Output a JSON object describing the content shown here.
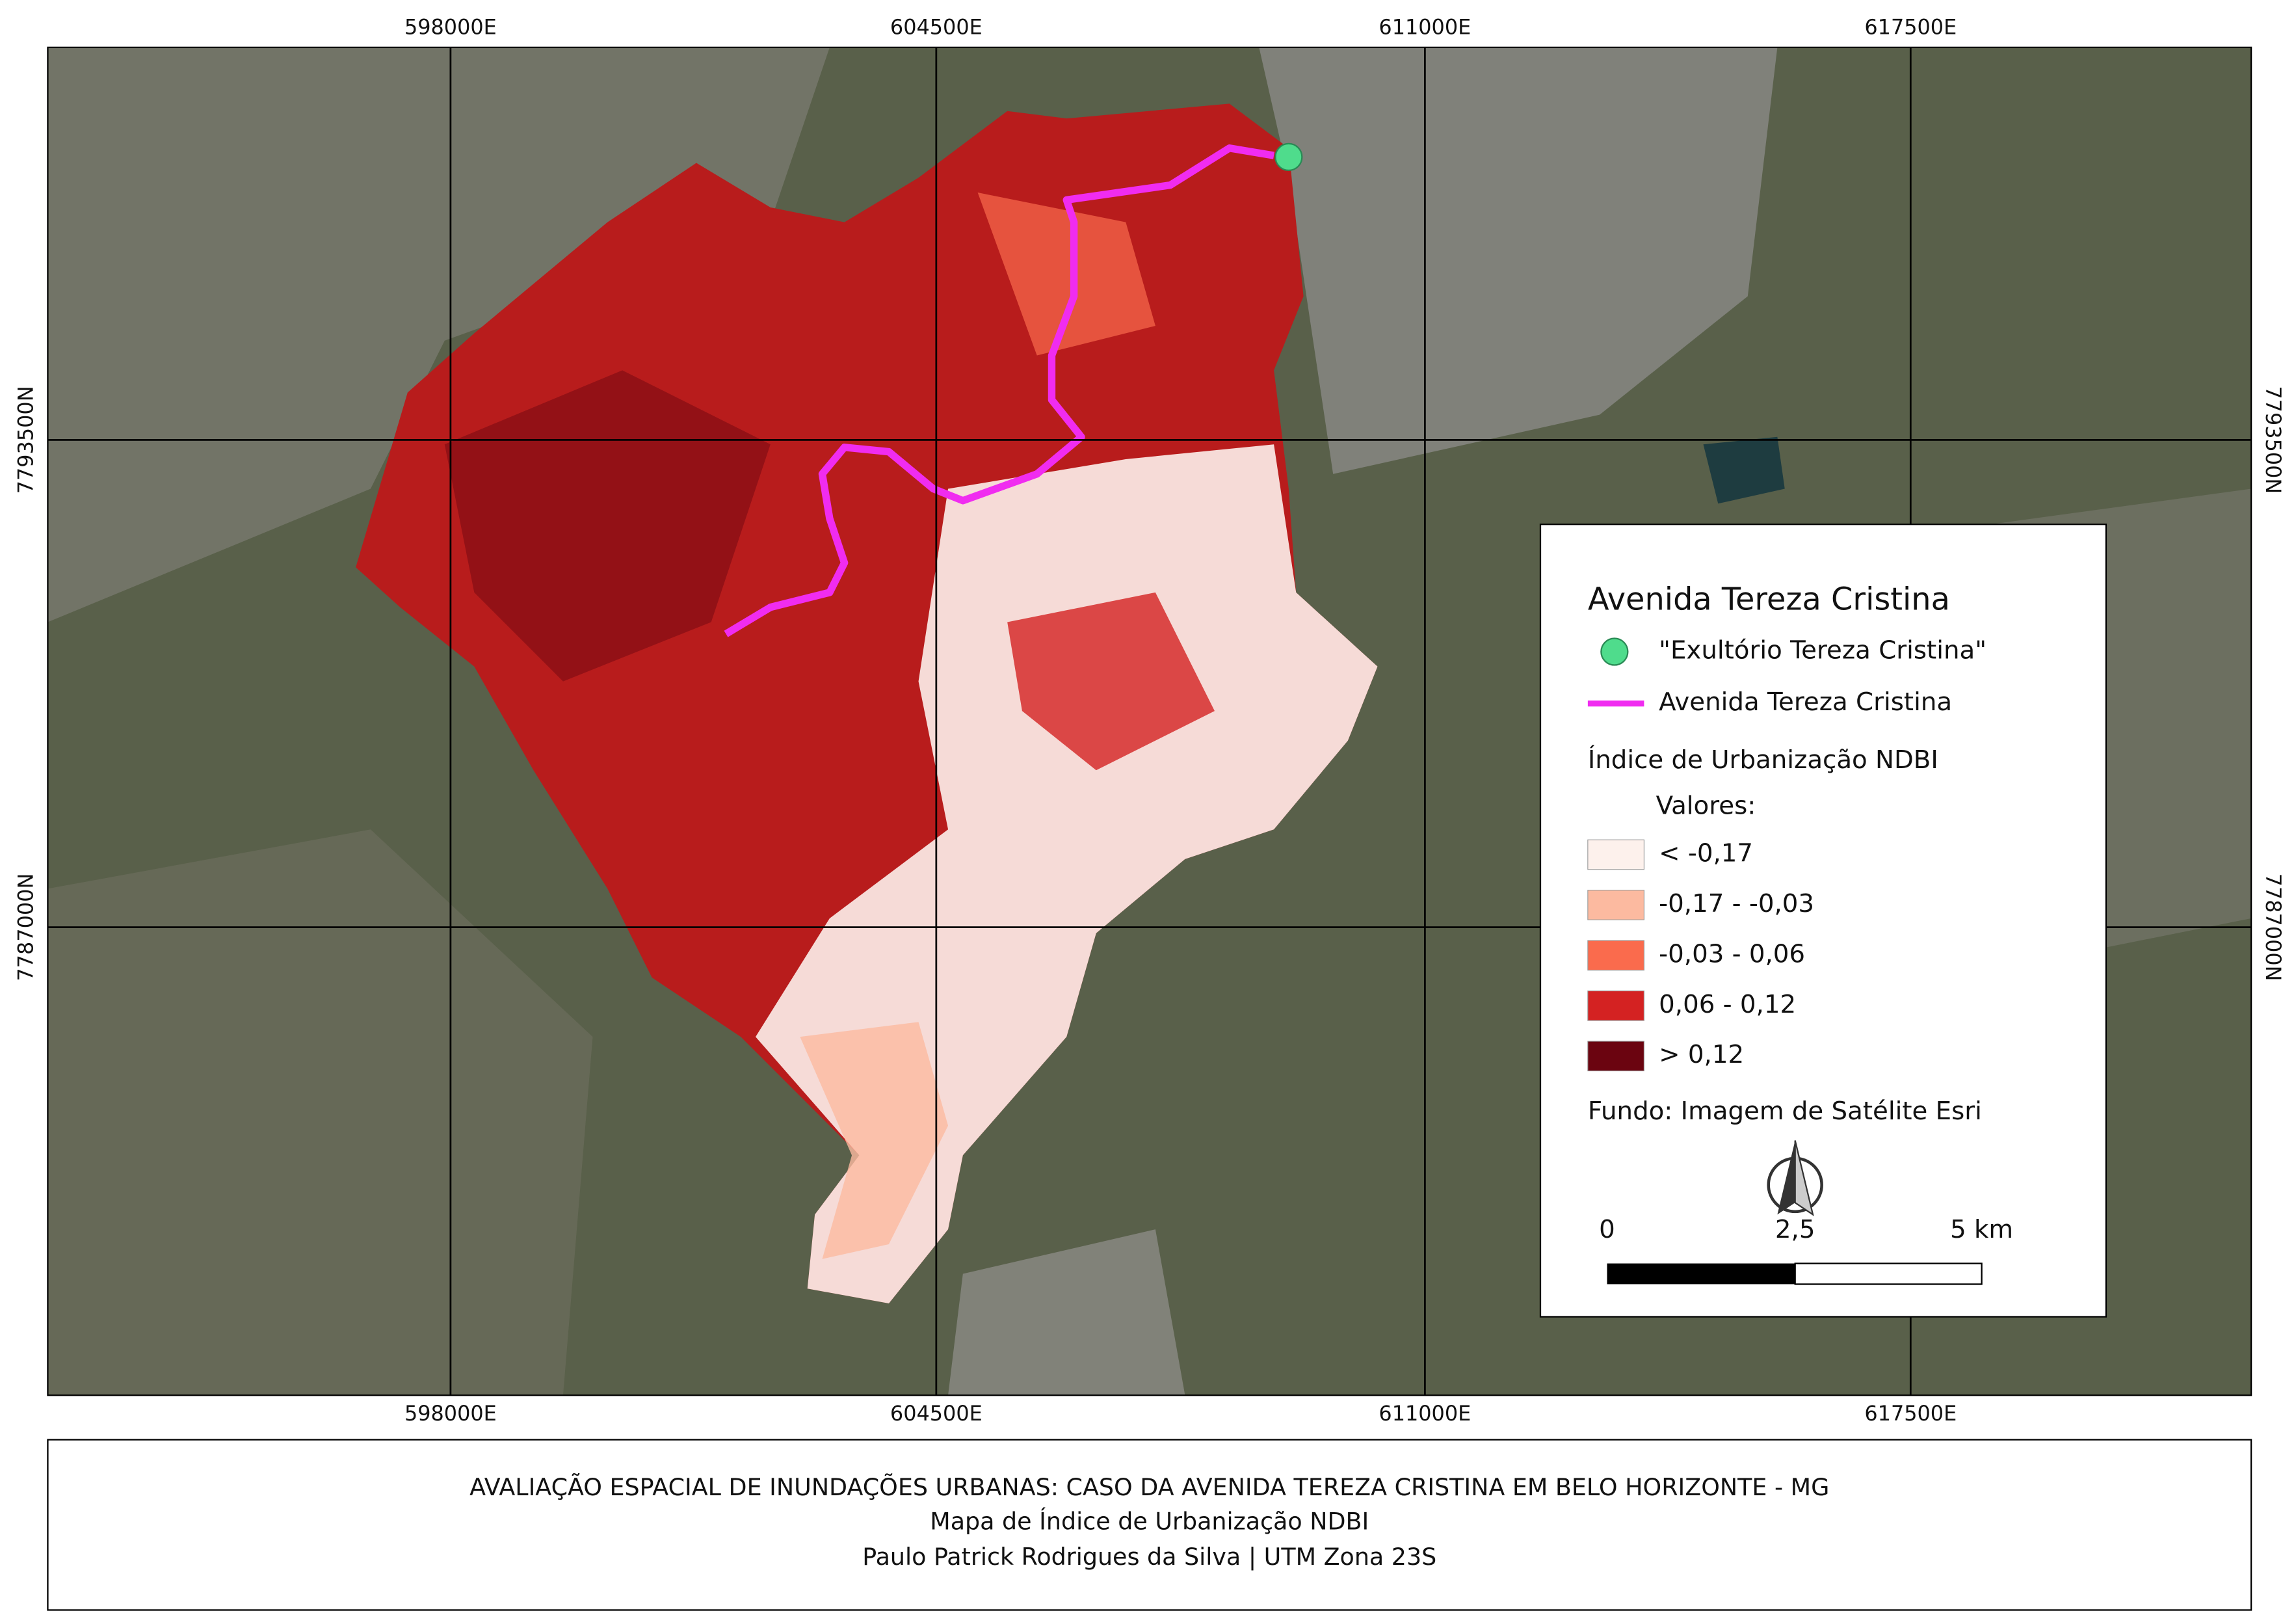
{
  "map": {
    "grid": {
      "x_labels": [
        "598000E",
        "604500E",
        "611000E",
        "617500E"
      ],
      "y_labels": [
        "7793500N",
        "7787000N"
      ]
    },
    "legend": {
      "title": "Avenida Tereza Cristina",
      "point_label": "\"Exultório Tereza Cristina\"",
      "line_label": "Avenida Tereza Cristina",
      "raster_title": "Índice de Urbanização NDBI",
      "values_title": "Valores:",
      "classes": [
        {
          "label": "< -0,17",
          "color": "#fdf1ec"
        },
        {
          "label": "-0,17 - -0,03",
          "color": "#fcbaa0"
        },
        {
          "label": "-0,03 - 0,06",
          "color": "#fa6b4d"
        },
        {
          "label": "0,06 - 0,12",
          "color": "#d42222"
        },
        {
          "label": "> 0,12",
          "color": "#6b0410"
        }
      ],
      "background_note": "Fundo: Imagem de Satélite Esri",
      "scale_labels": [
        "0",
        "2,5",
        "5 km"
      ]
    }
  },
  "footer": {
    "lines": [
      "AVALIAÇÃO ESPACIAL DE INUNDAÇÕES URBANAS: CASO DA AVENIDA TEREZA CRISTINA EM BELO HORIZONTE - MG",
      "Mapa de Índice de Urbanização NDBI",
      "Paulo Patrick Rodrigues da Silva | UTM Zona 23S"
    ]
  }
}
